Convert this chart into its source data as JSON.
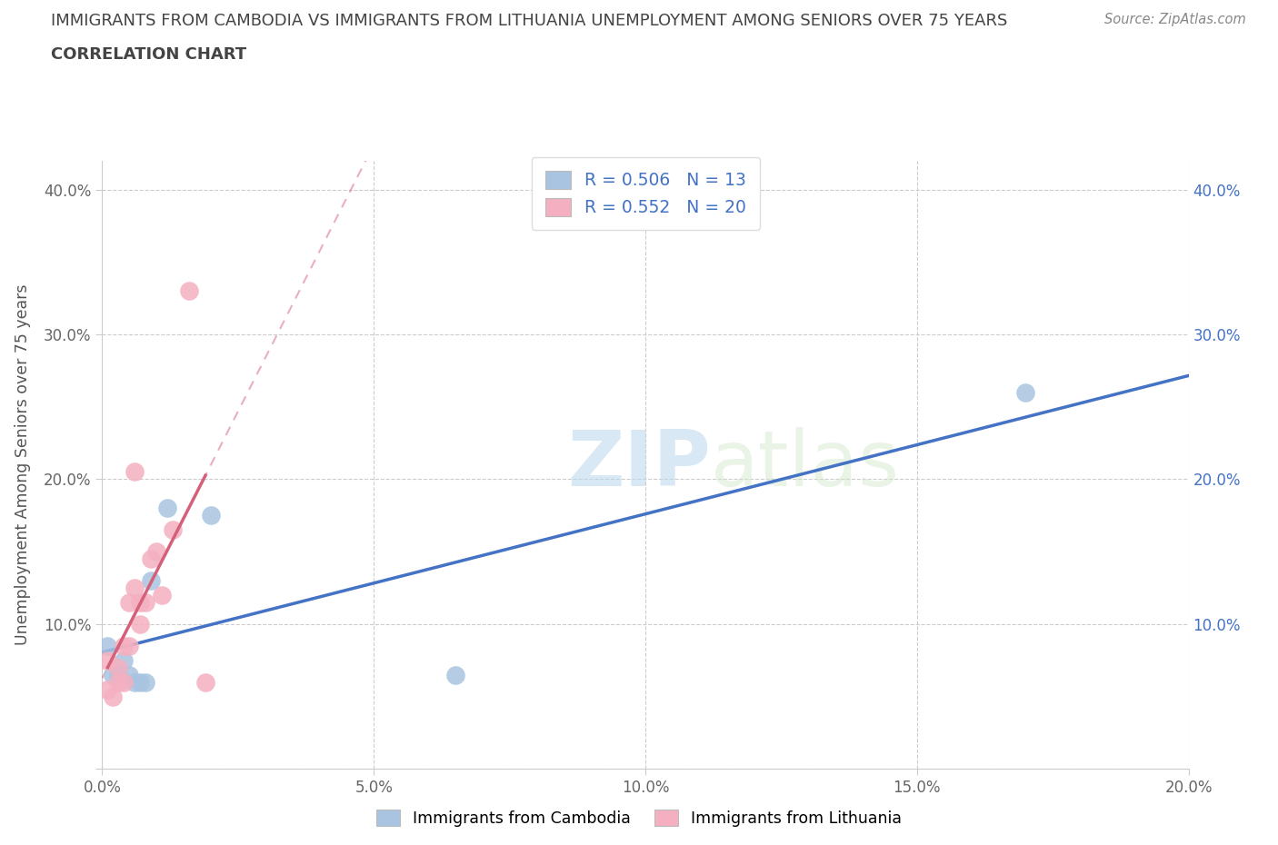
{
  "title_line1": "IMMIGRANTS FROM CAMBODIA VS IMMIGRANTS FROM LITHUANIA UNEMPLOYMENT AMONG SENIORS OVER 75 YEARS",
  "title_line2": "CORRELATION CHART",
  "source": "Source: ZipAtlas.com",
  "ylabel": "Unemployment Among Seniors over 75 years",
  "legend_label1": "Immigrants from Cambodia",
  "legend_label2": "Immigrants from Lithuania",
  "R1": 0.506,
  "N1": 13,
  "R2": 0.552,
  "N2": 20,
  "color1": "#a8c4e0",
  "color2": "#f4b0c0",
  "line_color1": "#4472c4",
  "line_color2": "#d4607a",
  "xlim": [
    0,
    0.2
  ],
  "ylim": [
    0,
    0.42
  ],
  "xticks": [
    0.0,
    0.05,
    0.1,
    0.15,
    0.2
  ],
  "xtick_labels": [
    "0.0%",
    "5.0%",
    "10.0%",
    "15.0%",
    "20.0%"
  ],
  "yticks": [
    0.0,
    0.1,
    0.2,
    0.3,
    0.4
  ],
  "ytick_labels": [
    "",
    "10.0%",
    "20.0%",
    "30.0%",
    "40.0%"
  ],
  "right_ytick_labels": [
    "",
    "10.0%",
    "20.0%",
    "30.0%",
    "40.0%"
  ],
  "cambodia_x": [
    0.001,
    0.002,
    0.003,
    0.004,
    0.005,
    0.006,
    0.007,
    0.008,
    0.009,
    0.012,
    0.02,
    0.065,
    0.17
  ],
  "cambodia_y": [
    0.085,
    0.065,
    0.065,
    0.075,
    0.065,
    0.06,
    0.06,
    0.06,
    0.13,
    0.18,
    0.175,
    0.065,
    0.26
  ],
  "lithuania_x": [
    0.001,
    0.001,
    0.002,
    0.003,
    0.003,
    0.004,
    0.004,
    0.005,
    0.005,
    0.006,
    0.006,
    0.007,
    0.007,
    0.008,
    0.009,
    0.01,
    0.011,
    0.013,
    0.016,
    0.019
  ],
  "lithuania_y": [
    0.055,
    0.075,
    0.05,
    0.07,
    0.06,
    0.06,
    0.085,
    0.085,
    0.115,
    0.125,
    0.205,
    0.1,
    0.115,
    0.115,
    0.145,
    0.15,
    0.12,
    0.165,
    0.33,
    0.06
  ],
  "watermark_part1": "ZIP",
  "watermark_part2": "atlas",
  "background_color": "#ffffff",
  "grid_color": "#cccccc",
  "title_color": "#444444",
  "source_color": "#888888",
  "axis_label_color": "#555555",
  "tick_label_color": "#666666"
}
